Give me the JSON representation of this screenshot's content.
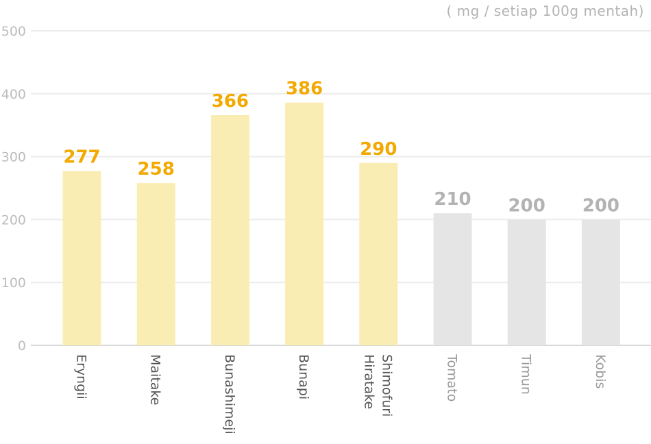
{
  "chart_data": {
    "type": "bar",
    "unit_label": "( mg / setiap 100g mentah)",
    "y_ticks": [
      "0",
      "100",
      "200",
      "300",
      "400",
      "500"
    ],
    "ylim": [
      0,
      500
    ],
    "grid": true,
    "categories": [
      "Eryngii",
      "Maitake",
      "Bunashimeji",
      "Bunapi",
      "Shimofuri Hiratake",
      "Tomato",
      "Timun",
      "Kobis"
    ],
    "category_lines": [
      [
        "Eryngii"
      ],
      [
        "Maitake"
      ],
      [
        "Bunashimeji"
      ],
      [
        "Bunapi"
      ],
      [
        "Shimofuri",
        "Hiratake"
      ],
      [
        "Tomato"
      ],
      [
        "Timun"
      ],
      [
        "Kobis"
      ]
    ],
    "values": [
      277,
      258,
      366,
      386,
      290,
      210,
      200,
      200
    ],
    "value_labels": [
      "277",
      "258",
      "366",
      "386",
      "290",
      "210",
      "200",
      "200"
    ],
    "highlight": [
      true,
      true,
      true,
      true,
      true,
      false,
      false,
      false
    ],
    "colors": {
      "highlight_bar": "#faedb3",
      "highlight_label": "#f2a900",
      "other_bar": "#e5e5e5",
      "other_label": "#b3b3b3",
      "grid": "#ececec",
      "axis_text": "#bdbdbd",
      "category_text": "#555555"
    }
  }
}
